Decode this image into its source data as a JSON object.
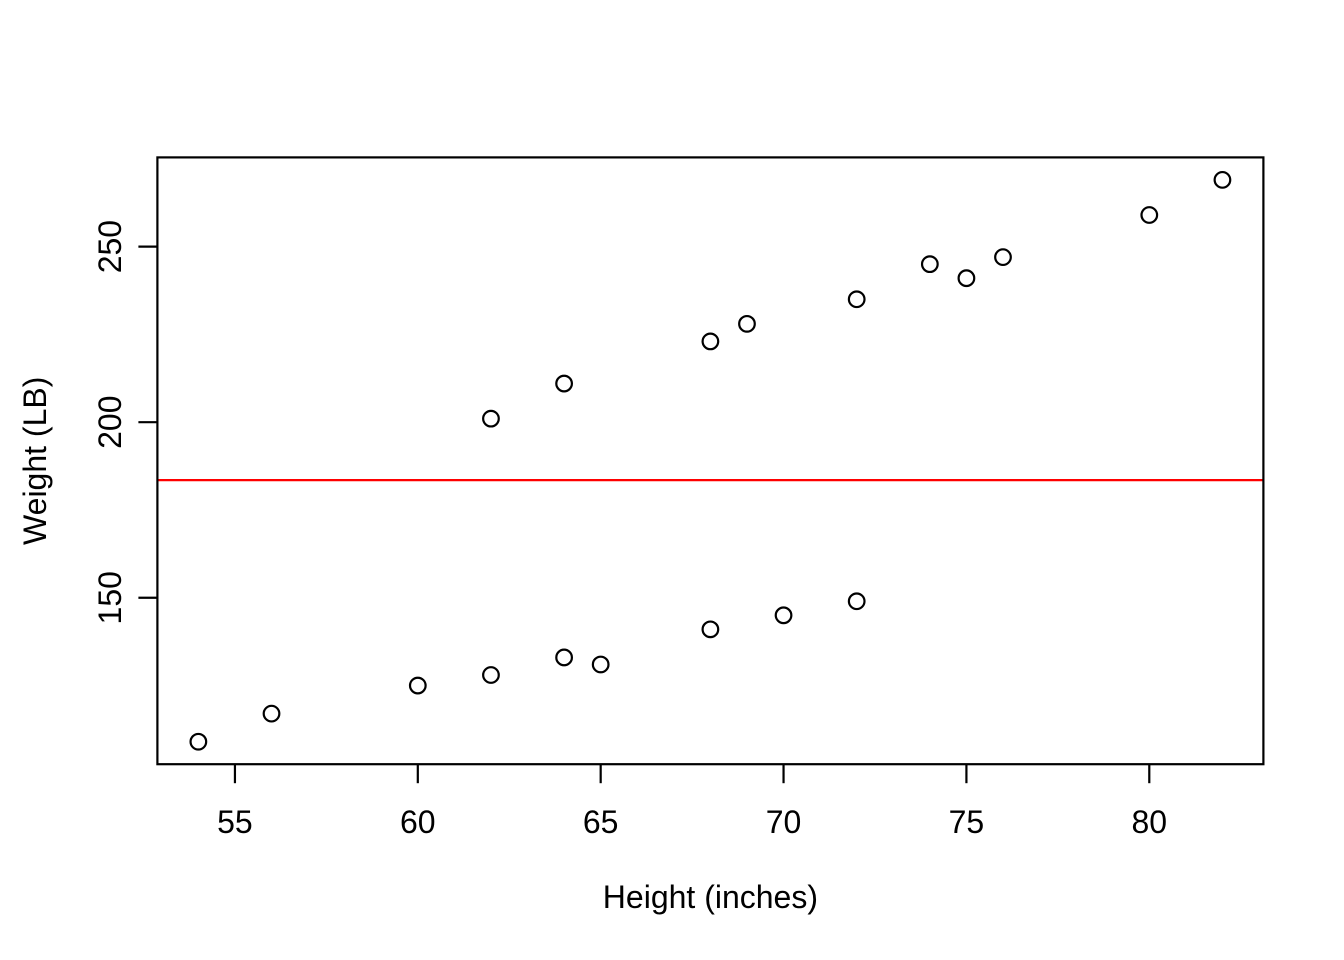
{
  "figure": {
    "background_color": "#ffffff",
    "foreground_color": "#000000"
  },
  "chart_data": {
    "type": "scatter",
    "title": "",
    "xlabel": "Height (inches)",
    "ylabel": "Weight (LB)",
    "x_ticks": [
      55,
      60,
      65,
      70,
      75,
      80
    ],
    "y_ticks": [
      150,
      200,
      250
    ],
    "xlim": [
      52.88,
      83.12
    ],
    "ylim": [
      102.6,
      275.4
    ],
    "grid": false,
    "legend": null,
    "point_style": {
      "shape": "open-circle",
      "stroke_color": "#000000",
      "fill": "none"
    },
    "points": [
      {
        "x": 54,
        "y": 109
      },
      {
        "x": 56,
        "y": 117
      },
      {
        "x": 60,
        "y": 125
      },
      {
        "x": 62,
        "y": 128
      },
      {
        "x": 64,
        "y": 133
      },
      {
        "x": 65,
        "y": 131
      },
      {
        "x": 68,
        "y": 141
      },
      {
        "x": 70,
        "y": 145
      },
      {
        "x": 72,
        "y": 149
      },
      {
        "x": 62,
        "y": 201
      },
      {
        "x": 64,
        "y": 211
      },
      {
        "x": 68,
        "y": 223
      },
      {
        "x": 69,
        "y": 228
      },
      {
        "x": 72,
        "y": 235
      },
      {
        "x": 74,
        "y": 245
      },
      {
        "x": 75,
        "y": 241
      },
      {
        "x": 76,
        "y": 247
      },
      {
        "x": 80,
        "y": 259
      },
      {
        "x": 82,
        "y": 269
      }
    ],
    "reference_line": {
      "orientation": "horizontal",
      "value": 183.5,
      "color": "#ff0000"
    }
  }
}
